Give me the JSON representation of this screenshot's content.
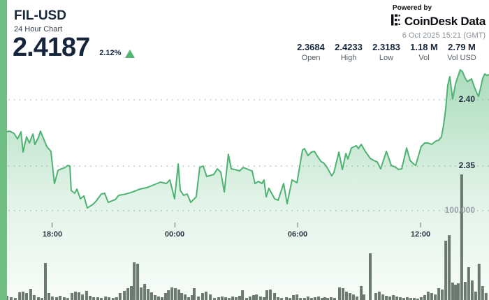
{
  "header": {
    "symbol": "FIL-USD",
    "subtitle": "24 Hour Chart",
    "price": "2.4187",
    "change_pct": "2.12%",
    "direction": "up",
    "powered_by": "Powered by",
    "brand": "CoinDesk Data",
    "timestamp": "6 Oct 2025 15:21 (GMT)"
  },
  "stats": [
    {
      "value": "2.3684",
      "label": "Open"
    },
    {
      "value": "2.4233",
      "label": "High"
    },
    {
      "value": "2.3183",
      "label": "Low"
    },
    {
      "value": "1.18 M",
      "label": "Vol"
    },
    {
      "value": "2.79 M",
      "label": "Vol USD"
    }
  ],
  "colors": {
    "accent_green": "#6fbe82",
    "line_green": "#4fb273",
    "triangle_green": "#55b573",
    "volume_bar": "#5e6e63",
    "navy_text": "#16253b",
    "gray_text": "#566069",
    "grid_dot": "#b8bfc5"
  },
  "chart_data": {
    "type": "area",
    "title": "FIL-USD 24 Hour Chart",
    "x_unit": "hours_from_start",
    "time_span_hours": 24,
    "x_ticks": [
      {
        "t": 2.65,
        "label": "18:00"
      },
      {
        "t": 8.65,
        "label": "00:00"
      },
      {
        "t": 14.65,
        "label": "06:00"
      },
      {
        "t": 20.65,
        "label": "12:00"
      }
    ],
    "price_gridlines": [
      {
        "price": 2.4,
        "label": "2.40"
      },
      {
        "price": 2.35,
        "label": "2.35"
      }
    ],
    "volume_gridline": {
      "volume": 100000,
      "label": "100,000"
    },
    "price_series": [
      [
        0.1,
        2.3747
      ],
      [
        0.38,
        2.3758
      ],
      [
        0.58,
        2.3763
      ],
      [
        0.78,
        2.3747
      ],
      [
        0.96,
        2.3705
      ],
      [
        1.13,
        2.3758
      ],
      [
        1.23,
        2.3605
      ],
      [
        1.4,
        2.3721
      ],
      [
        1.54,
        2.3674
      ],
      [
        1.71,
        2.3742
      ],
      [
        1.81,
        2.3663
      ],
      [
        1.98,
        2.3716
      ],
      [
        2.08,
        2.3763
      ],
      [
        2.25,
        2.37
      ],
      [
        2.39,
        2.3647
      ],
      [
        2.59,
        2.3611
      ],
      [
        2.76,
        2.3368
      ],
      [
        2.94,
        2.3468
      ],
      [
        3.11,
        2.3479
      ],
      [
        3.28,
        2.3489
      ],
      [
        3.41,
        2.3505
      ],
      [
        3.52,
        2.35
      ],
      [
        3.58,
        2.3316
      ],
      [
        3.75,
        2.3295
      ],
      [
        3.86,
        2.3326
      ],
      [
        4.03,
        2.3253
      ],
      [
        4.2,
        2.3274
      ],
      [
        4.37,
        2.3184
      ],
      [
        4.64,
        2.3211
      ],
      [
        4.78,
        2.3232
      ],
      [
        5.05,
        2.3289
      ],
      [
        5.22,
        2.3295
      ],
      [
        5.39,
        2.3226
      ],
      [
        5.73,
        2.3247
      ],
      [
        5.9,
        2.3279
      ],
      [
        6.25,
        2.3289
      ],
      [
        6.59,
        2.3305
      ],
      [
        6.93,
        2.3326
      ],
      [
        7.27,
        2.3337
      ],
      [
        7.61,
        2.3358
      ],
      [
        7.95,
        2.3379
      ],
      [
        8.23,
        2.3368
      ],
      [
        8.4,
        2.3395
      ],
      [
        8.63,
        2.3253
      ],
      [
        8.81,
        2.3516
      ],
      [
        8.91,
        2.3316
      ],
      [
        9.08,
        2.3279
      ],
      [
        9.25,
        2.3289
      ],
      [
        9.42,
        2.3226
      ],
      [
        9.69,
        2.3268
      ],
      [
        9.86,
        2.3489
      ],
      [
        10.03,
        2.35
      ],
      [
        10.2,
        2.3421
      ],
      [
        10.55,
        2.3437
      ],
      [
        10.72,
        2.3479
      ],
      [
        10.89,
        2.3453
      ],
      [
        11.06,
        2.3305
      ],
      [
        11.26,
        2.3589
      ],
      [
        11.4,
        2.3479
      ],
      [
        11.57,
        2.3474
      ],
      [
        11.81,
        2.3463
      ],
      [
        11.98,
        2.3489
      ],
      [
        12.15,
        2.3479
      ],
      [
        12.42,
        2.3463
      ],
      [
        12.56,
        2.3368
      ],
      [
        12.73,
        2.3384
      ],
      [
        12.9,
        2.3368
      ],
      [
        13.0,
        2.3395
      ],
      [
        13.11,
        2.3268
      ],
      [
        13.24,
        2.3332
      ],
      [
        13.52,
        2.3253
      ],
      [
        13.69,
        2.3242
      ],
      [
        13.96,
        2.3368
      ],
      [
        14.13,
        2.3216
      ],
      [
        14.37,
        2.3395
      ],
      [
        14.61,
        2.3374
      ],
      [
        14.88,
        2.3621
      ],
      [
        14.98,
        2.3632
      ],
      [
        15.15,
        2.3579
      ],
      [
        15.32,
        2.3605
      ],
      [
        15.46,
        2.3611
      ],
      [
        15.63,
        2.3568
      ],
      [
        15.8,
        2.3532
      ],
      [
        15.9,
        2.3526
      ],
      [
        16.04,
        2.35
      ],
      [
        16.31,
        2.3426
      ],
      [
        16.42,
        2.3453
      ],
      [
        16.66,
        2.3605
      ],
      [
        16.83,
        2.3474
      ],
      [
        17.0,
        2.3595
      ],
      [
        17.1,
        2.3553
      ],
      [
        17.27,
        2.3637
      ],
      [
        17.51,
        2.3653
      ],
      [
        17.61,
        2.3632
      ],
      [
        17.75,
        2.3663
      ],
      [
        17.95,
        2.3611
      ],
      [
        18.19,
        2.3558
      ],
      [
        18.36,
        2.3542
      ],
      [
        18.53,
        2.3532
      ],
      [
        18.7,
        2.3479
      ],
      [
        18.98,
        2.3611
      ],
      [
        19.22,
        2.3505
      ],
      [
        19.45,
        2.3489
      ],
      [
        19.56,
        2.3474
      ],
      [
        19.73,
        2.3479
      ],
      [
        19.97,
        2.3637
      ],
      [
        20.14,
        2.3542
      ],
      [
        20.31,
        2.3516
      ],
      [
        20.41,
        2.3505
      ],
      [
        20.68,
        2.3647
      ],
      [
        20.85,
        2.3674
      ],
      [
        21.02,
        2.3674
      ],
      [
        21.19,
        2.3663
      ],
      [
        21.4,
        2.3689
      ],
      [
        21.54,
        2.3695
      ],
      [
        21.67,
        2.3721
      ],
      [
        21.77,
        2.3805
      ],
      [
        21.88,
        2.3937
      ],
      [
        21.98,
        2.4111
      ],
      [
        22.08,
        2.4174
      ],
      [
        22.22,
        2.4005
      ],
      [
        22.36,
        2.4121
      ],
      [
        22.49,
        2.4184
      ],
      [
        22.59,
        2.4226
      ],
      [
        22.7,
        2.4211
      ],
      [
        22.83,
        2.4163
      ],
      [
        22.94,
        2.4137
      ],
      [
        23.14,
        2.4158
      ],
      [
        23.28,
        2.4095
      ],
      [
        23.38,
        2.4058
      ],
      [
        23.48,
        2.4026
      ],
      [
        23.59,
        2.4095
      ],
      [
        23.69,
        2.4163
      ],
      [
        23.79,
        2.4195
      ],
      [
        23.89,
        2.4184
      ],
      [
        24.0,
        2.4189
      ]
    ],
    "volume_series": [
      [
        0.44,
        4700
      ],
      [
        0.65,
        3100
      ],
      [
        0.85,
        2300
      ],
      [
        1.06,
        8600
      ],
      [
        1.23,
        9400
      ],
      [
        1.4,
        7800
      ],
      [
        1.6,
        12500
      ],
      [
        1.77,
        5500
      ],
      [
        1.98,
        3100
      ],
      [
        2.15,
        2300
      ],
      [
        2.32,
        41400
      ],
      [
        2.49,
        7800
      ],
      [
        2.66,
        3900
      ],
      [
        2.87,
        3100
      ],
      [
        3.04,
        4700
      ],
      [
        3.24,
        3100
      ],
      [
        3.41,
        2300
      ],
      [
        3.62,
        7800
      ],
      [
        3.79,
        9400
      ],
      [
        3.96,
        8600
      ],
      [
        4.13,
        6200
      ],
      [
        4.33,
        10200
      ],
      [
        4.51,
        4700
      ],
      [
        4.68,
        3100
      ],
      [
        4.88,
        3100
      ],
      [
        5.05,
        2300
      ],
      [
        5.26,
        3900
      ],
      [
        5.43,
        3100
      ],
      [
        5.63,
        2300
      ],
      [
        5.8,
        3100
      ],
      [
        5.97,
        7800
      ],
      [
        6.18,
        10200
      ],
      [
        6.35,
        13300
      ],
      [
        6.52,
        15600
      ],
      [
        6.66,
        42200
      ],
      [
        6.83,
        40600
      ],
      [
        7.0,
        14100
      ],
      [
        7.17,
        18000
      ],
      [
        7.34,
        12500
      ],
      [
        7.51,
        8600
      ],
      [
        7.68,
        5500
      ],
      [
        7.85,
        3900
      ],
      [
        8.02,
        3100
      ],
      [
        8.19,
        7800
      ],
      [
        8.33,
        10900
      ],
      [
        8.5,
        14100
      ],
      [
        8.67,
        13300
      ],
      [
        8.84,
        11700
      ],
      [
        8.98,
        7800
      ],
      [
        9.15,
        6200
      ],
      [
        9.32,
        3100
      ],
      [
        9.49,
        5500
      ],
      [
        9.59,
        13300
      ],
      [
        9.8,
        3900
      ],
      [
        10.0,
        7800
      ],
      [
        10.17,
        9400
      ],
      [
        10.38,
        6200
      ],
      [
        10.58,
        2300
      ],
      [
        10.79,
        3100
      ],
      [
        10.96,
        3900
      ],
      [
        11.13,
        3100
      ],
      [
        11.3,
        2300
      ],
      [
        11.47,
        3900
      ],
      [
        11.64,
        3100
      ],
      [
        11.81,
        4700
      ],
      [
        11.95,
        10900
      ],
      [
        12.15,
        2300
      ],
      [
        12.32,
        3900
      ],
      [
        12.49,
        5500
      ],
      [
        12.63,
        6200
      ],
      [
        12.83,
        3900
      ],
      [
        13.0,
        3100
      ],
      [
        13.14,
        10900
      ],
      [
        13.31,
        11700
      ],
      [
        13.52,
        7800
      ],
      [
        13.69,
        3100
      ],
      [
        13.86,
        2300
      ],
      [
        14.1,
        3100
      ],
      [
        14.27,
        2300
      ],
      [
        14.44,
        5500
      ],
      [
        14.61,
        6200
      ],
      [
        14.78,
        2300
      ],
      [
        14.98,
        2300
      ],
      [
        15.15,
        3900
      ],
      [
        15.32,
        2300
      ],
      [
        15.49,
        3100
      ],
      [
        15.67,
        3900
      ],
      [
        15.84,
        2300
      ],
      [
        15.97,
        3100
      ],
      [
        16.11,
        2300
      ],
      [
        16.28,
        3100
      ],
      [
        16.45,
        2300
      ],
      [
        16.69,
        14100
      ],
      [
        16.86,
        13300
      ],
      [
        17.03,
        9400
      ],
      [
        17.2,
        7800
      ],
      [
        17.37,
        6200
      ],
      [
        17.54,
        3900
      ],
      [
        17.75,
        15600
      ],
      [
        17.88,
        6200
      ],
      [
        18.19,
        52300
      ],
      [
        18.46,
        7800
      ],
      [
        18.63,
        9400
      ],
      [
        18.81,
        6200
      ],
      [
        18.98,
        4700
      ],
      [
        19.15,
        3900
      ],
      [
        19.32,
        5500
      ],
      [
        19.49,
        3900
      ],
      [
        19.66,
        3100
      ],
      [
        19.83,
        2300
      ],
      [
        20.0,
        3100
      ],
      [
        20.17,
        2300
      ],
      [
        20.34,
        2300
      ],
      [
        20.51,
        1600
      ],
      [
        20.68,
        3100
      ],
      [
        20.85,
        5500
      ],
      [
        21.02,
        9400
      ],
      [
        21.19,
        7800
      ],
      [
        21.37,
        6200
      ],
      [
        21.54,
        13300
      ],
      [
        21.71,
        11700
      ],
      [
        21.88,
        66400
      ],
      [
        22.05,
        72600
      ],
      [
        22.22,
        19500
      ],
      [
        22.36,
        17200
      ],
      [
        22.49,
        18700
      ],
      [
        22.66,
        140600
      ],
      [
        22.83,
        20300
      ],
      [
        23.0,
        36700
      ],
      [
        23.17,
        21900
      ],
      [
        23.34,
        9400
      ],
      [
        23.51,
        40600
      ],
      [
        23.68,
        15600
      ],
      [
        23.85,
        7800
      ]
    ]
  }
}
